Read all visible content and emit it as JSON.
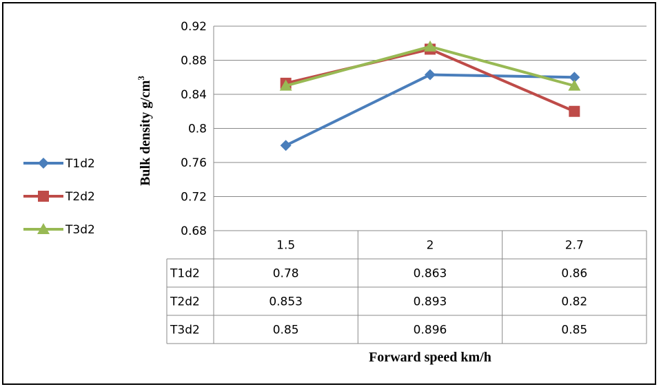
{
  "chart_data": {
    "type": "line",
    "categories": [
      "1.5",
      "2",
      "2.7"
    ],
    "series": [
      {
        "name": "T1d2",
        "values": [
          0.78,
          0.863,
          0.86
        ],
        "color": "#4A7EBB",
        "marker": "diamond"
      },
      {
        "name": "T2d2",
        "values": [
          0.853,
          0.893,
          0.82
        ],
        "color": "#BE4B48",
        "marker": "square"
      },
      {
        "name": "T3d2",
        "values": [
          0.85,
          0.896,
          0.85
        ],
        "color": "#98B954",
        "marker": "triangle"
      }
    ],
    "data_table": [
      [
        "0.78",
        "0.863",
        "0.86"
      ],
      [
        "0.853",
        "0.893",
        "0.82"
      ],
      [
        "0.85",
        "0.896",
        "0.85"
      ]
    ],
    "xlabel": "Forward speed km/h",
    "ylabel": "Bulk density g/cm",
    "ylabel_superscript": "3",
    "ylim": [
      0.68,
      0.92
    ],
    "yticks": [
      "0.68",
      "0.72",
      "0.76",
      "0.8",
      "0.84",
      "0.88",
      "0.92"
    ],
    "grid": true,
    "legend_position": "left"
  }
}
